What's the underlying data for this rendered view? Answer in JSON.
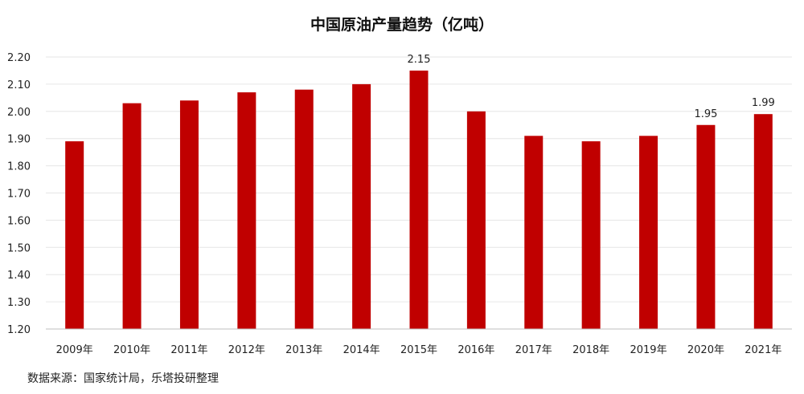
{
  "chart_data": {
    "type": "bar",
    "title": "中国原油产量趋势（亿吨）",
    "categories": [
      "2009年",
      "2010年",
      "2011年",
      "2012年",
      "2013年",
      "2014年",
      "2015年",
      "2016年",
      "2017年",
      "2018年",
      "2019年",
      "2020年",
      "2021年"
    ],
    "values": [
      1.89,
      2.03,
      2.04,
      2.07,
      2.08,
      2.1,
      2.15,
      2.0,
      1.91,
      1.89,
      1.91,
      1.95,
      1.99
    ],
    "data_labels": [
      {
        "category": "2015年",
        "text": "2.15"
      },
      {
        "category": "2020年",
        "text": "1.95"
      },
      {
        "category": "2021年",
        "text": "1.99"
      }
    ],
    "ylim": [
      1.2,
      2.2
    ],
    "yticks": [
      "1.20",
      "1.30",
      "1.40",
      "1.50",
      "1.60",
      "1.70",
      "1.80",
      "1.90",
      "2.00",
      "2.10",
      "2.20"
    ],
    "xlabel": "",
    "ylabel": "",
    "grid": true,
    "legend": "none",
    "bar_color": "#C00000",
    "grid_color": "#E6E6E6"
  },
  "source": "数据来源：国家统计局，乐塔投研整理"
}
